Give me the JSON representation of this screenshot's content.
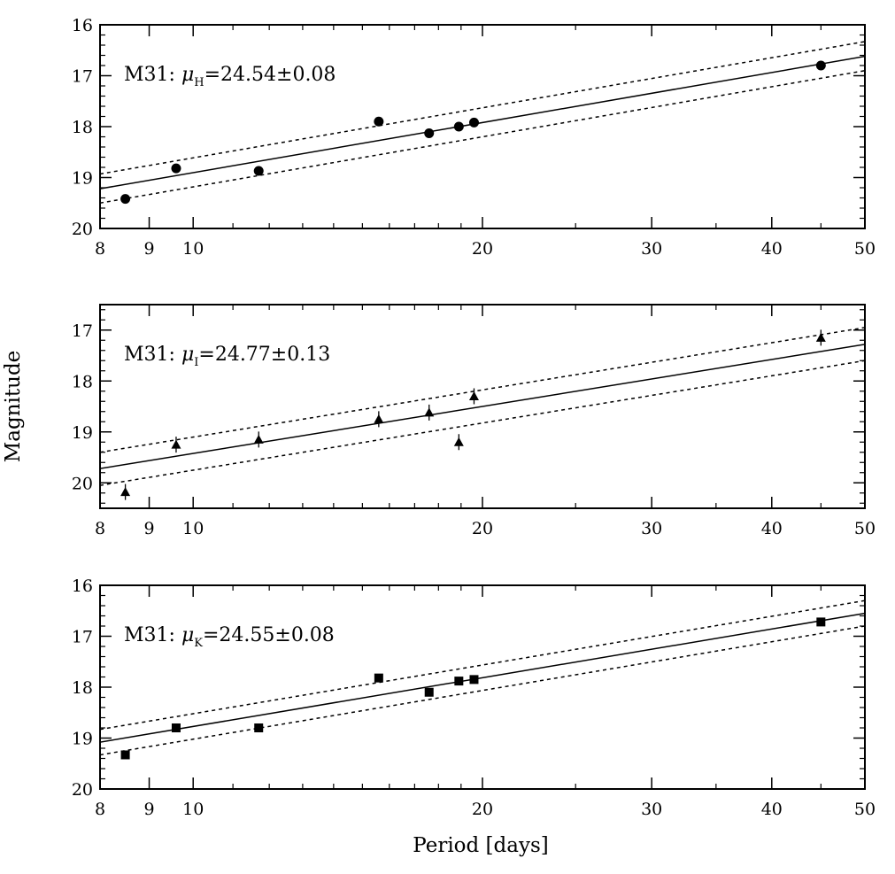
{
  "figure": {
    "ylabel": "Magnitude",
    "xlabel": "Period [days]"
  },
  "chart_data": [
    {
      "type": "scatter",
      "panel": "H",
      "annotation": {
        "prefix": "M31: ",
        "mu": "μ",
        "sub": "H",
        "value": "=24.54±0.08"
      },
      "x_scale": "log",
      "xlim": [
        8,
        50
      ],
      "ylim": [
        20,
        16
      ],
      "x_ticks": [
        8,
        9,
        10,
        20,
        30,
        40,
        50
      ],
      "x_tick_labels": [
        "8",
        "9",
        "10",
        "20",
        "30",
        "40",
        "50"
      ],
      "y_ticks": [
        16,
        17,
        18,
        19,
        20
      ],
      "y_tick_labels": [
        "16",
        "17",
        "18",
        "19",
        "20"
      ],
      "marker": "circle",
      "points": [
        {
          "x": 8.5,
          "y": 19.42
        },
        {
          "x": 9.6,
          "y": 18.82
        },
        {
          "x": 11.7,
          "y": 18.87
        },
        {
          "x": 15.6,
          "y": 17.9
        },
        {
          "x": 17.6,
          "y": 18.13
        },
        {
          "x": 18.9,
          "y": 18.0
        },
        {
          "x": 19.6,
          "y": 17.92
        },
        {
          "x": 45.0,
          "y": 16.8
        }
      ],
      "fit_line": {
        "x": [
          8,
          50
        ],
        "y": [
          19.22,
          16.62
        ]
      },
      "bound_upper": {
        "x": [
          8,
          50
        ],
        "y": [
          18.93,
          16.33
        ]
      },
      "bound_lower": {
        "x": [
          8,
          50
        ],
        "y": [
          19.5,
          16.9
        ]
      }
    },
    {
      "type": "scatter",
      "panel": "I",
      "annotation": {
        "prefix": "M31: ",
        "mu": "μ",
        "sub": "I",
        "value": "=24.77±0.13"
      },
      "x_scale": "log",
      "xlim": [
        8,
        50
      ],
      "ylim": [
        20.5,
        16.5
      ],
      "x_ticks": [
        8,
        9,
        10,
        20,
        30,
        40,
        50
      ],
      "x_tick_labels": [
        "8",
        "9",
        "10",
        "20",
        "30",
        "40",
        "50"
      ],
      "y_ticks": [
        17,
        18,
        19,
        20
      ],
      "y_tick_labels": [
        "17",
        "18",
        "19",
        "20"
      ],
      "marker": "triangle",
      "points": [
        {
          "x": 8.5,
          "y": 20.18
        },
        {
          "x": 9.6,
          "y": 19.25
        },
        {
          "x": 11.7,
          "y": 19.15
        },
        {
          "x": 15.6,
          "y": 18.75
        },
        {
          "x": 17.6,
          "y": 18.62
        },
        {
          "x": 18.9,
          "y": 19.2
        },
        {
          "x": 19.6,
          "y": 18.3
        },
        {
          "x": 45.0,
          "y": 17.15
        }
      ],
      "fit_line": {
        "x": [
          8,
          50
        ],
        "y": [
          19.72,
          17.28
        ]
      },
      "bound_upper": {
        "x": [
          8,
          50
        ],
        "y": [
          19.4,
          16.95
        ]
      },
      "bound_lower": {
        "x": [
          8,
          50
        ],
        "y": [
          20.05,
          17.6
        ]
      }
    },
    {
      "type": "scatter",
      "panel": "K",
      "annotation": {
        "prefix": "M31: ",
        "mu": "μ",
        "sub": "K",
        "value": "=24.55±0.08"
      },
      "x_scale": "log",
      "xlim": [
        8,
        50
      ],
      "ylim": [
        20,
        16
      ],
      "x_ticks": [
        8,
        9,
        10,
        20,
        30,
        40,
        50
      ],
      "x_tick_labels": [
        "8",
        "9",
        "10",
        "20",
        "30",
        "40",
        "50"
      ],
      "y_ticks": [
        16,
        17,
        18,
        19,
        20
      ],
      "y_tick_labels": [
        "16",
        "17",
        "18",
        "19",
        "20"
      ],
      "marker": "square",
      "points": [
        {
          "x": 8.5,
          "y": 19.33
        },
        {
          "x": 9.6,
          "y": 18.8
        },
        {
          "x": 11.7,
          "y": 18.8
        },
        {
          "x": 15.6,
          "y": 17.82
        },
        {
          "x": 17.6,
          "y": 18.1
        },
        {
          "x": 18.9,
          "y": 17.88
        },
        {
          "x": 19.6,
          "y": 17.85
        },
        {
          "x": 45.0,
          "y": 16.72
        }
      ],
      "fit_line": {
        "x": [
          8,
          50
        ],
        "y": [
          19.08,
          16.55
        ]
      },
      "bound_upper": {
        "x": [
          8,
          50
        ],
        "y": [
          18.83,
          16.3
        ]
      },
      "bound_lower": {
        "x": [
          8,
          50
        ],
        "y": [
          19.33,
          16.8
        ]
      }
    }
  ]
}
